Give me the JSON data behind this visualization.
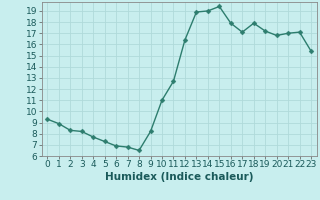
{
  "x": [
    0,
    1,
    2,
    3,
    4,
    5,
    6,
    7,
    8,
    9,
    10,
    11,
    12,
    13,
    14,
    15,
    16,
    17,
    18,
    19,
    20,
    21,
    22,
    23
  ],
  "y": [
    9.3,
    8.9,
    8.3,
    8.2,
    7.7,
    7.3,
    6.9,
    6.8,
    6.5,
    8.2,
    11.0,
    12.7,
    16.4,
    18.9,
    19.0,
    19.4,
    17.9,
    17.1,
    17.9,
    17.2,
    16.8,
    17.0,
    17.1,
    15.4
  ],
  "xlabel": "Humidex (Indice chaleur)",
  "line_color": "#2d7d6e",
  "marker_color": "#2d7d6e",
  "bg_color": "#c8eeee",
  "grid_color": "#b0dada",
  "ylim": [
    6,
    19.8
  ],
  "yticks": [
    6,
    7,
    8,
    9,
    10,
    11,
    12,
    13,
    14,
    15,
    16,
    17,
    18,
    19
  ],
  "xlim": [
    -0.5,
    23.5
  ],
  "xticks": [
    0,
    1,
    2,
    3,
    4,
    5,
    6,
    7,
    8,
    9,
    10,
    11,
    12,
    13,
    14,
    15,
    16,
    17,
    18,
    19,
    20,
    21,
    22,
    23
  ],
  "xlabel_fontsize": 7.5,
  "tick_fontsize": 6.5,
  "linewidth": 1.0,
  "markersize": 2.5
}
